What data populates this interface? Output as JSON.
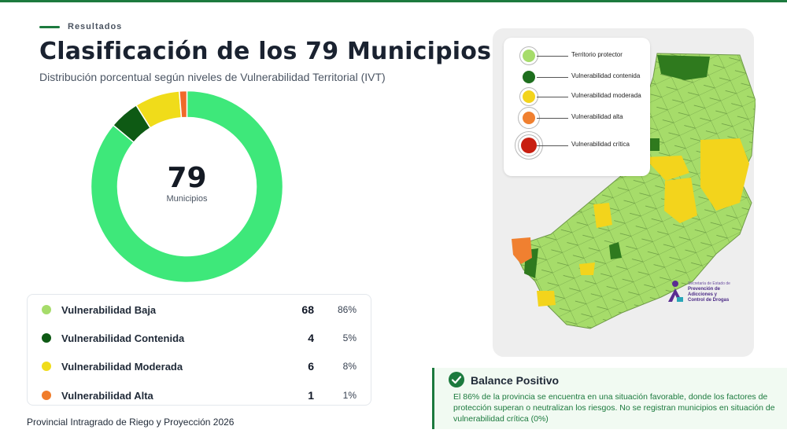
{
  "header": {
    "section_tag": "Resultados",
    "title": "Clasificación de los 79 Municipios",
    "subtitle": "Distribución porcentual según niveles de Vulnerabilidad Territorial (IVT)"
  },
  "donut": {
    "total": "79",
    "total_label": "Municipios"
  },
  "chart_data": {
    "type": "pie",
    "categories": [
      "Vulnerabilidad Baja",
      "Vulnerabilidad  Contenida",
      "Vulnerabilidad Moderada",
      "Vulnerabilidad Alta"
    ],
    "values": [
      68,
      4,
      6,
      1
    ],
    "percentages": [
      "86%",
      "5%",
      "8%",
      "1%"
    ],
    "colors": [
      "#3ee87a",
      "#0e5a14",
      "#f0dc1a",
      "#f06a2a"
    ]
  },
  "legend": {
    "rows": [
      {
        "label": "Vulnerabilidad Baja",
        "count": "68",
        "pct": "86%",
        "color": "#a6dc6a"
      },
      {
        "label": "Vulnerabilidad  Contenida",
        "count": "4",
        "pct": "5%",
        "color": "#0e5a14"
      },
      {
        "label": "Vulnerabilidad Moderada",
        "count": "6",
        "pct": "8%",
        "color": "#f0dc1a"
      },
      {
        "label": "Vulnerabilidad Alta",
        "count": "1",
        "pct": "1%",
        "color": "#f07c2a"
      }
    ]
  },
  "footer": "Provincial Intragrado de Riego y Proyección 2026",
  "map_legend": {
    "items": [
      {
        "label": "Territorio protector",
        "color": "#a6dc6a"
      },
      {
        "label": "Vulnerabilidad contenida",
        "color": "#1e6e1e"
      },
      {
        "label": "Vulnerabilidad moderada",
        "color": "#f3d41c"
      },
      {
        "label": "Vulnerabilidad alta",
        "color": "#f08030"
      },
      {
        "label": "Vulnerabilidad crítica",
        "color": "#c81e10"
      }
    ]
  },
  "brand": {
    "line1": "Secretaría de Estado de",
    "line2": "Prevención de",
    "line3": "Adicciones y",
    "line4": "Control de Drogas"
  },
  "balance": {
    "heading": "Balance Positivo",
    "body": "El 86% de la provincia se encuentra en una situación favorable, donde los factores de protección superan o neutralizan los riesgos. No se registran municipios en situación de vulnerabilidad crítica (0%)"
  }
}
